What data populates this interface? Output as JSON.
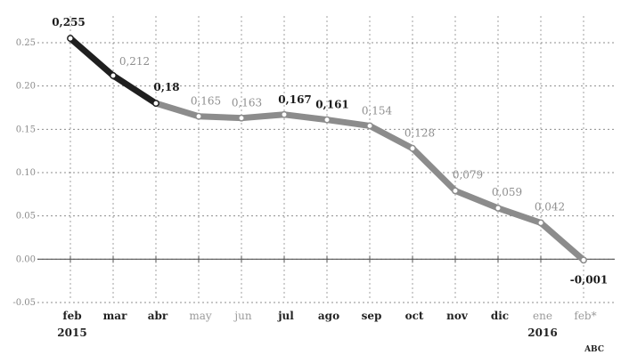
{
  "chart_data": {
    "type": "line",
    "categories": [
      "feb",
      "mar",
      "abr",
      "may",
      "jun",
      "jul",
      "ago",
      "sep",
      "oct",
      "nov",
      "dic",
      "ene",
      "feb*"
    ],
    "category_sublabels": [
      "2015",
      "",
      "",
      "",
      "",
      "",
      "",
      "",
      "",
      "",
      "",
      "2016",
      ""
    ],
    "series": [
      {
        "values": [
          0.255,
          0.212,
          0.18,
          0.165,
          0.163,
          0.167,
          0.161,
          0.154,
          0.128,
          0.079,
          0.059,
          0.042,
          -0.001
        ]
      }
    ],
    "data_labels": [
      "0,255",
      "0,212",
      "0,18",
      "0,165",
      "0,163",
      "0,167",
      "0,161",
      "0,154",
      "0,128",
      "0,079",
      "0,059",
      "0,042",
      "-0,001"
    ],
    "y_ticks": [
      0.25,
      0.2,
      0.15,
      0.1,
      0.05,
      0.0,
      -0.05
    ],
    "y_tick_labels": [
      "0.25",
      "0.20",
      "0.15",
      "0.10",
      "0.05",
      "0.00",
      "-0.05"
    ],
    "ylim": [
      -0.05,
      0.25
    ],
    "title": "",
    "xlabel": "",
    "ylabel": "",
    "grid": "dotted",
    "colors": {
      "dark": "#1f1f1f",
      "light": "#8c8c8c",
      "grid": "#333333",
      "tick_dim": "#9a9a9a"
    }
  },
  "credit": "ABC"
}
